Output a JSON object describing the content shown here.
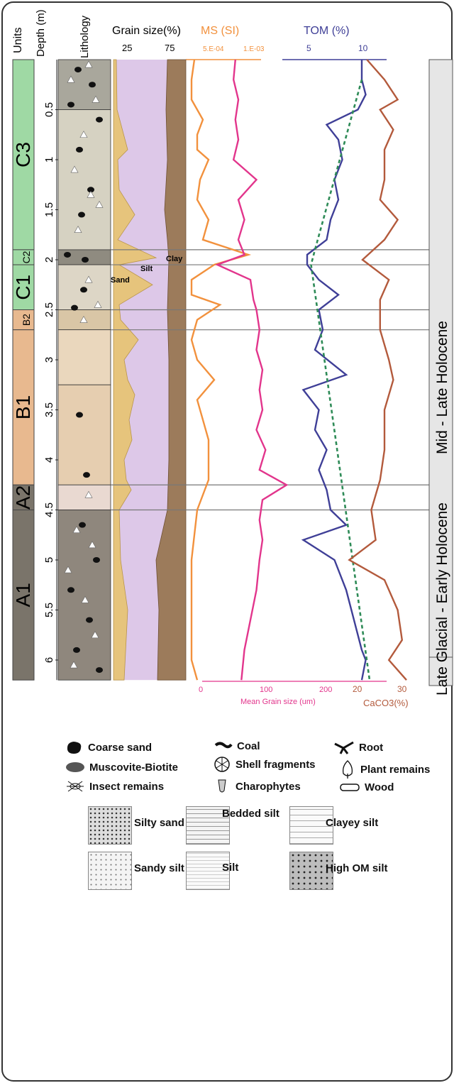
{
  "header": {
    "units": "Units",
    "depth": "Depth (m)",
    "lithology": "Lithology",
    "grain_size": "Grain size(%)",
    "ms": "MS (SI)",
    "tom": "TOM (%)"
  },
  "grain_ticks": [
    "25",
    "75"
  ],
  "ms_ticks": [
    "5.E-04",
    "1.E-03"
  ],
  "tom_ticks": [
    "5",
    "10"
  ],
  "mean_ticks": [
    "0",
    "100",
    "200"
  ],
  "caco3_ticks": [
    "20",
    "30"
  ],
  "mean_label": "Mean Grain size (um)",
  "caco3_label": "CaCO3(%)",
  "grain_labels": {
    "sand": "Sand",
    "silt": "Silt",
    "clay": "Clay"
  },
  "periods": [
    "Mid - Late Holocene",
    "Late Glacial - Early Holocene"
  ],
  "units": [
    {
      "name": "C3",
      "top": 0.0,
      "bottom": 1.9,
      "color": "#9fd9a4"
    },
    {
      "name": "C2",
      "top": 1.9,
      "bottom": 2.05,
      "color": "#9fd9a4"
    },
    {
      "name": "C1",
      "top": 2.05,
      "bottom": 2.5,
      "color": "#9fd9a4"
    },
    {
      "name": "B2",
      "top": 2.5,
      "bottom": 2.7,
      "color": "#e8b98f"
    },
    {
      "name": "B1",
      "top": 2.7,
      "bottom": 4.25,
      "color": "#e8b98f"
    },
    {
      "name": "A2",
      "top": 4.25,
      "bottom": 4.5,
      "color": "#7a746a"
    },
    {
      "name": "A1",
      "top": 4.5,
      "bottom": 6.2,
      "color": "#7a746a"
    }
  ],
  "chart_data": {
    "type": "line",
    "depth_ticks": [
      "0.5",
      "1",
      "1.5",
      "2",
      "2.5",
      "3",
      "3.5",
      "4",
      "4.5",
      "5",
      "5.5",
      "6"
    ],
    "depth_range": [
      0,
      6.2
    ],
    "boundaries": [
      1.9,
      2.05,
      2.5,
      2.7,
      4.25,
      4.5
    ],
    "series": [
      {
        "name": "MS (SI)",
        "color": "#f2913d",
        "values": [
          [
            0.0,
            0.00015
          ],
          [
            0.2,
            0.0001
          ],
          [
            0.4,
            0.0001
          ],
          [
            0.6,
            0.0003
          ],
          [
            0.75,
            0.0002
          ],
          [
            0.9,
            0.0002
          ],
          [
            1.0,
            0.0004
          ],
          [
            1.2,
            0.00025
          ],
          [
            1.4,
            0.0002
          ],
          [
            1.6,
            0.0004
          ],
          [
            1.8,
            0.0003
          ],
          [
            1.95,
            0.0011
          ],
          [
            2.05,
            0.0005
          ],
          [
            2.2,
            0.0001
          ],
          [
            2.35,
            0.0001
          ],
          [
            2.45,
            0.0006
          ],
          [
            2.6,
            0.0002
          ],
          [
            2.8,
            0.0001
          ],
          [
            3.0,
            0.0002
          ],
          [
            3.2,
            0.0005
          ],
          [
            3.4,
            0.0002
          ],
          [
            3.6,
            0.0003
          ],
          [
            3.8,
            0.0004
          ],
          [
            4.0,
            0.0004
          ],
          [
            4.2,
            0.0004
          ],
          [
            4.5,
            0.0002
          ],
          [
            5.0,
            0.0001
          ],
          [
            5.5,
            0.0001
          ],
          [
            6.0,
            0.0001
          ],
          [
            6.2,
            0.0002
          ]
        ]
      },
      {
        "name": "TOM (%)",
        "color": "#3f3f97",
        "values": [
          [
            0.0,
            10.0
          ],
          [
            0.2,
            10.0
          ],
          [
            0.35,
            10.5
          ],
          [
            0.5,
            9.5
          ],
          [
            0.65,
            5.5
          ],
          [
            0.8,
            7.0
          ],
          [
            1.0,
            7.5
          ],
          [
            1.2,
            6.5
          ],
          [
            1.4,
            7.0
          ],
          [
            1.6,
            6.0
          ],
          [
            1.8,
            5.5
          ],
          [
            1.95,
            3.0
          ],
          [
            2.05,
            3.0
          ],
          [
            2.2,
            4.5
          ],
          [
            2.35,
            7.0
          ],
          [
            2.5,
            4.5
          ],
          [
            2.7,
            5.0
          ],
          [
            2.9,
            4.0
          ],
          [
            3.15,
            8.0
          ],
          [
            3.3,
            2.5
          ],
          [
            3.5,
            4.5
          ],
          [
            3.7,
            4.0
          ],
          [
            3.9,
            5.5
          ],
          [
            4.1,
            4.5
          ],
          [
            4.3,
            5.5
          ],
          [
            4.5,
            6.0
          ],
          [
            4.65,
            8.0
          ],
          [
            4.8,
            2.5
          ],
          [
            5.0,
            6.5
          ],
          [
            5.3,
            8.0
          ],
          [
            5.6,
            9.0
          ],
          [
            5.9,
            10.0
          ],
          [
            6.0,
            10.5
          ],
          [
            6.2,
            10.0
          ]
        ]
      },
      {
        "name": "TOM trend",
        "color": "#2e8b57",
        "values": [
          [
            0.2,
            10.0
          ],
          [
            1.9,
            4.0
          ],
          [
            2.05,
            3.5
          ],
          [
            6.2,
            11.0
          ]
        ]
      },
      {
        "name": "Mean Grain size (um)",
        "color": "#e2358c",
        "values": [
          [
            0.0,
            55
          ],
          [
            0.2,
            52
          ],
          [
            0.4,
            60
          ],
          [
            0.6,
            55
          ],
          [
            0.8,
            60
          ],
          [
            1.0,
            52
          ],
          [
            1.2,
            90
          ],
          [
            1.4,
            60
          ],
          [
            1.6,
            70
          ],
          [
            1.8,
            60
          ],
          [
            1.95,
            70
          ],
          [
            2.05,
            25
          ],
          [
            2.2,
            80
          ],
          [
            2.4,
            85
          ],
          [
            2.5,
            90
          ],
          [
            2.7,
            95
          ],
          [
            2.9,
            90
          ],
          [
            3.1,
            100
          ],
          [
            3.3,
            95
          ],
          [
            3.5,
            100
          ],
          [
            3.7,
            90
          ],
          [
            3.9,
            105
          ],
          [
            4.1,
            95
          ],
          [
            4.25,
            140
          ],
          [
            4.4,
            100
          ],
          [
            4.6,
            95
          ],
          [
            4.8,
            100
          ],
          [
            5.0,
            95
          ],
          [
            5.3,
            90
          ],
          [
            5.6,
            80
          ],
          [
            5.9,
            70
          ],
          [
            6.2,
            65
          ]
        ]
      },
      {
        "name": "CaCO3(%)",
        "color": "#b35a3c",
        "values": [
          [
            0.0,
            23
          ],
          [
            0.2,
            27
          ],
          [
            0.4,
            30
          ],
          [
            0.5,
            26
          ],
          [
            0.7,
            29
          ],
          [
            0.9,
            27
          ],
          [
            1.2,
            27
          ],
          [
            1.4,
            26
          ],
          [
            1.6,
            30
          ],
          [
            1.8,
            27
          ],
          [
            2.0,
            22
          ],
          [
            2.2,
            28
          ],
          [
            2.4,
            26
          ],
          [
            2.7,
            26
          ],
          [
            3.0,
            28
          ],
          [
            3.2,
            29
          ],
          [
            3.5,
            27
          ],
          [
            3.9,
            27
          ],
          [
            4.2,
            26
          ],
          [
            4.5,
            24
          ],
          [
            4.8,
            25
          ],
          [
            5.0,
            19
          ],
          [
            5.2,
            27
          ],
          [
            5.5,
            30
          ],
          [
            5.8,
            31
          ],
          [
            6.0,
            28
          ],
          [
            6.2,
            32
          ]
        ]
      }
    ]
  },
  "legend": {
    "items": [
      "Coarse sand",
      "Coal",
      "Root",
      "Muscovite-Biotite",
      "Shell fragments",
      "Plant remains",
      "Insect remains",
      "Charophytes",
      "Wood"
    ],
    "patterns": [
      "Silty sand",
      "Bedded silt",
      "Clayey silt",
      "Sandy silt",
      "Silt",
      "High OM silt"
    ]
  }
}
